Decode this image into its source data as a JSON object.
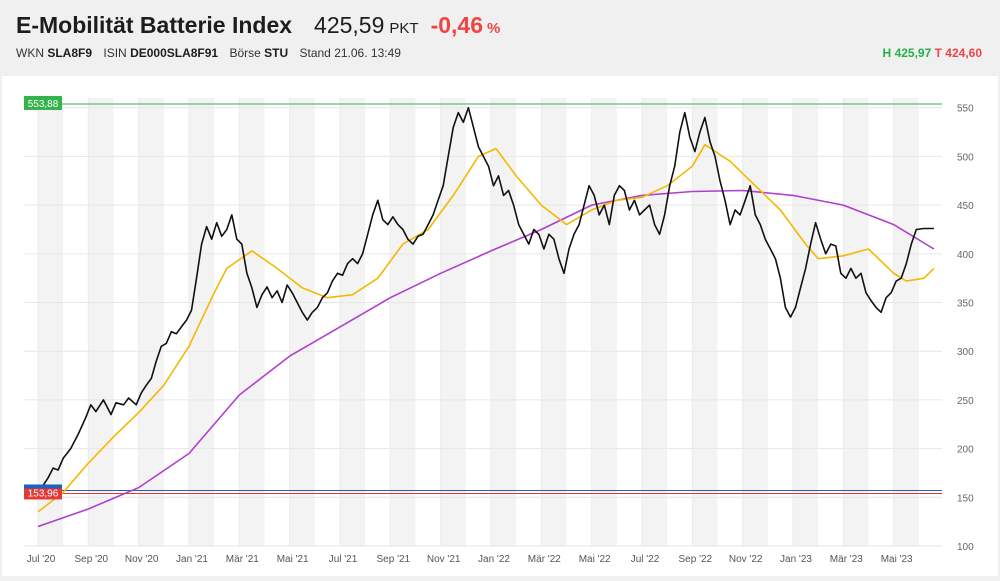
{
  "header": {
    "name": "E-Mobilität Batterie Index",
    "price": "425,59",
    "unit": "PKT",
    "change": "-0,46",
    "change_unit": "%",
    "wkn_label": "WKN",
    "wkn": "SLA8F9",
    "isin_label": "ISIN",
    "isin": "DE000SLA8F91",
    "exchange_label": "Börse",
    "exchange": "STU",
    "stand_label": "Stand",
    "stand": "21.06. 13:49",
    "high_label": "H",
    "high": "425,97",
    "low_label": "T",
    "low": "424,60"
  },
  "colors": {
    "price_line": "#111111",
    "ma_short": "#f5b800",
    "ma_long": "#b13ed0",
    "high_line": "#34b34a",
    "low_line": "#e53935",
    "base_line": "#1f5fbf",
    "label_high_bg": "#34b34a",
    "label_low_bg": "#e53935",
    "band": "#f3f3f3"
  },
  "chart_data": {
    "type": "line",
    "y_range": [
      100,
      560
    ],
    "y_ticks": [
      100,
      150,
      200,
      250,
      300,
      350,
      400,
      450,
      500,
      550
    ],
    "x_labels": [
      "Jul '20",
      "Sep '20",
      "Nov '20",
      "Jan '21",
      "Mär '21",
      "Mai '21",
      "Jul '21",
      "Sep '21",
      "Nov '21",
      "Jan '22",
      "Mär '22",
      "Mai '22",
      "Jul '22",
      "Sep '22",
      "Nov '22",
      "Jan '23",
      "Mär '23",
      "Mai '23"
    ],
    "x_range_months": [
      0,
      36
    ],
    "reference_lines": [
      {
        "label": "553,88",
        "value": 553.88,
        "color": "high_line"
      },
      {
        "label": "153,96",
        "value": 153.96,
        "color": "low_line"
      },
      {
        "label": "",
        "value": 157,
        "color": "base_line"
      }
    ],
    "series": [
      {
        "key": "price",
        "points": [
          [
            0,
            158
          ],
          [
            0.2,
            162
          ],
          [
            0.4,
            170
          ],
          [
            0.6,
            180
          ],
          [
            0.8,
            178
          ],
          [
            1.0,
            190
          ],
          [
            1.3,
            200
          ],
          [
            1.6,
            215
          ],
          [
            1.9,
            232
          ],
          [
            2.1,
            245
          ],
          [
            2.3,
            238
          ],
          [
            2.6,
            250
          ],
          [
            2.9,
            235
          ],
          [
            3.1,
            247
          ],
          [
            3.4,
            245
          ],
          [
            3.6,
            252
          ],
          [
            3.9,
            245
          ],
          [
            4.1,
            257
          ],
          [
            4.3,
            265
          ],
          [
            4.5,
            272
          ],
          [
            4.7,
            290
          ],
          [
            4.9,
            305
          ],
          [
            5.1,
            308
          ],
          [
            5.3,
            320
          ],
          [
            5.5,
            318
          ],
          [
            5.7,
            325
          ],
          [
            5.9,
            332
          ],
          [
            6.1,
            342
          ],
          [
            6.3,
            375
          ],
          [
            6.5,
            410
          ],
          [
            6.7,
            428
          ],
          [
            6.9,
            415
          ],
          [
            7.1,
            432
          ],
          [
            7.3,
            418
          ],
          [
            7.5,
            425
          ],
          [
            7.7,
            440
          ],
          [
            7.9,
            415
          ],
          [
            8.1,
            410
          ],
          [
            8.3,
            380
          ],
          [
            8.5,
            365
          ],
          [
            8.7,
            345
          ],
          [
            8.9,
            358
          ],
          [
            9.1,
            366
          ],
          [
            9.3,
            355
          ],
          [
            9.5,
            362
          ],
          [
            9.7,
            350
          ],
          [
            9.9,
            368
          ],
          [
            10.1,
            360
          ],
          [
            10.3,
            350
          ],
          [
            10.5,
            340
          ],
          [
            10.7,
            332
          ],
          [
            10.9,
            340
          ],
          [
            11.1,
            345
          ],
          [
            11.3,
            355
          ],
          [
            11.5,
            360
          ],
          [
            11.7,
            372
          ],
          [
            11.9,
            380
          ],
          [
            12.1,
            378
          ],
          [
            12.3,
            390
          ],
          [
            12.5,
            395
          ],
          [
            12.7,
            390
          ],
          [
            12.9,
            400
          ],
          [
            13.1,
            420
          ],
          [
            13.3,
            440
          ],
          [
            13.5,
            455
          ],
          [
            13.7,
            435
          ],
          [
            13.9,
            430
          ],
          [
            14.1,
            438
          ],
          [
            14.3,
            430
          ],
          [
            14.5,
            425
          ],
          [
            14.7,
            415
          ],
          [
            14.9,
            410
          ],
          [
            15.1,
            418
          ],
          [
            15.3,
            420
          ],
          [
            15.5,
            430
          ],
          [
            15.7,
            440
          ],
          [
            15.9,
            455
          ],
          [
            16.1,
            470
          ],
          [
            16.3,
            500
          ],
          [
            16.5,
            530
          ],
          [
            16.7,
            545
          ],
          [
            16.9,
            535
          ],
          [
            17.1,
            550
          ],
          [
            17.3,
            530
          ],
          [
            17.5,
            510
          ],
          [
            17.7,
            500
          ],
          [
            17.9,
            490
          ],
          [
            18.1,
            470
          ],
          [
            18.3,
            480
          ],
          [
            18.5,
            460
          ],
          [
            18.7,
            465
          ],
          [
            18.9,
            450
          ],
          [
            19.1,
            430
          ],
          [
            19.3,
            420
          ],
          [
            19.5,
            410
          ],
          [
            19.7,
            425
          ],
          [
            19.9,
            420
          ],
          [
            20.1,
            405
          ],
          [
            20.3,
            420
          ],
          [
            20.5,
            415
          ],
          [
            20.7,
            395
          ],
          [
            20.9,
            380
          ],
          [
            21.1,
            405
          ],
          [
            21.3,
            420
          ],
          [
            21.5,
            430
          ],
          [
            21.7,
            450
          ],
          [
            21.9,
            470
          ],
          [
            22.1,
            460
          ],
          [
            22.3,
            440
          ],
          [
            22.5,
            450
          ],
          [
            22.7,
            430
          ],
          [
            22.9,
            460
          ],
          [
            23.1,
            470
          ],
          [
            23.3,
            465
          ],
          [
            23.5,
            445
          ],
          [
            23.7,
            455
          ],
          [
            23.9,
            440
          ],
          [
            24.1,
            445
          ],
          [
            24.3,
            450
          ],
          [
            24.5,
            430
          ],
          [
            24.7,
            420
          ],
          [
            24.9,
            440
          ],
          [
            25.1,
            470
          ],
          [
            25.3,
            490
          ],
          [
            25.5,
            525
          ],
          [
            25.7,
            545
          ],
          [
            25.9,
            520
          ],
          [
            26.1,
            505
          ],
          [
            26.3,
            525
          ],
          [
            26.5,
            540
          ],
          [
            26.7,
            515
          ],
          [
            26.9,
            500
          ],
          [
            27.1,
            475
          ],
          [
            27.3,
            455
          ],
          [
            27.5,
            430
          ],
          [
            27.7,
            445
          ],
          [
            27.9,
            440
          ],
          [
            28.1,
            455
          ],
          [
            28.3,
            470
          ],
          [
            28.5,
            440
          ],
          [
            28.7,
            430
          ],
          [
            28.9,
            415
          ],
          [
            29.1,
            405
          ],
          [
            29.3,
            395
          ],
          [
            29.5,
            375
          ],
          [
            29.7,
            345
          ],
          [
            29.9,
            335
          ],
          [
            30.1,
            345
          ],
          [
            30.3,
            365
          ],
          [
            30.5,
            385
          ],
          [
            30.7,
            410
          ],
          [
            30.9,
            432
          ],
          [
            31.1,
            415
          ],
          [
            31.3,
            400
          ],
          [
            31.5,
            410
          ],
          [
            31.7,
            408
          ],
          [
            31.9,
            380
          ],
          [
            32.1,
            375
          ],
          [
            32.3,
            385
          ],
          [
            32.5,
            375
          ],
          [
            32.7,
            380
          ],
          [
            32.9,
            360
          ],
          [
            33.1,
            352
          ],
          [
            33.3,
            345
          ],
          [
            33.5,
            340
          ],
          [
            33.7,
            355
          ],
          [
            33.9,
            360
          ],
          [
            34.1,
            372
          ],
          [
            34.3,
            375
          ],
          [
            34.5,
            390
          ],
          [
            34.7,
            410
          ],
          [
            34.9,
            425
          ],
          [
            35.2,
            426
          ],
          [
            35.6,
            426
          ]
        ]
      },
      {
        "key": "ma_short",
        "points": [
          [
            0,
            135
          ],
          [
            1,
            155
          ],
          [
            2,
            185
          ],
          [
            3,
            212
          ],
          [
            4,
            237
          ],
          [
            5,
            265
          ],
          [
            6,
            305
          ],
          [
            7,
            360
          ],
          [
            7.5,
            385
          ],
          [
            8.5,
            403
          ],
          [
            9.5,
            385
          ],
          [
            10.5,
            365
          ],
          [
            11.5,
            355
          ],
          [
            12.5,
            358
          ],
          [
            13.5,
            375
          ],
          [
            14.5,
            410
          ],
          [
            15.5,
            425
          ],
          [
            16.5,
            460
          ],
          [
            17.5,
            500
          ],
          [
            18.2,
            508
          ],
          [
            19,
            480
          ],
          [
            20,
            450
          ],
          [
            21,
            430
          ],
          [
            22,
            445
          ],
          [
            23,
            455
          ],
          [
            24,
            458
          ],
          [
            25,
            470
          ],
          [
            26,
            490
          ],
          [
            26.5,
            512
          ],
          [
            27.5,
            495
          ],
          [
            28.5,
            470
          ],
          [
            29.5,
            445
          ],
          [
            30.5,
            410
          ],
          [
            31,
            395
          ],
          [
            32,
            398
          ],
          [
            33,
            405
          ],
          [
            34,
            380
          ],
          [
            34.5,
            372
          ],
          [
            35.2,
            375
          ],
          [
            35.6,
            385
          ]
        ]
      },
      {
        "key": "ma_long",
        "points": [
          [
            0,
            120
          ],
          [
            2,
            138
          ],
          [
            4,
            160
          ],
          [
            6,
            195
          ],
          [
            8,
            255
          ],
          [
            10,
            295
          ],
          [
            12,
            325
          ],
          [
            14,
            355
          ],
          [
            16,
            380
          ],
          [
            18,
            403
          ],
          [
            20,
            425
          ],
          [
            22,
            450
          ],
          [
            24,
            460
          ],
          [
            26,
            464
          ],
          [
            28,
            465
          ],
          [
            30,
            460
          ],
          [
            32,
            450
          ],
          [
            34,
            430
          ],
          [
            35.6,
            405
          ]
        ]
      }
    ]
  }
}
